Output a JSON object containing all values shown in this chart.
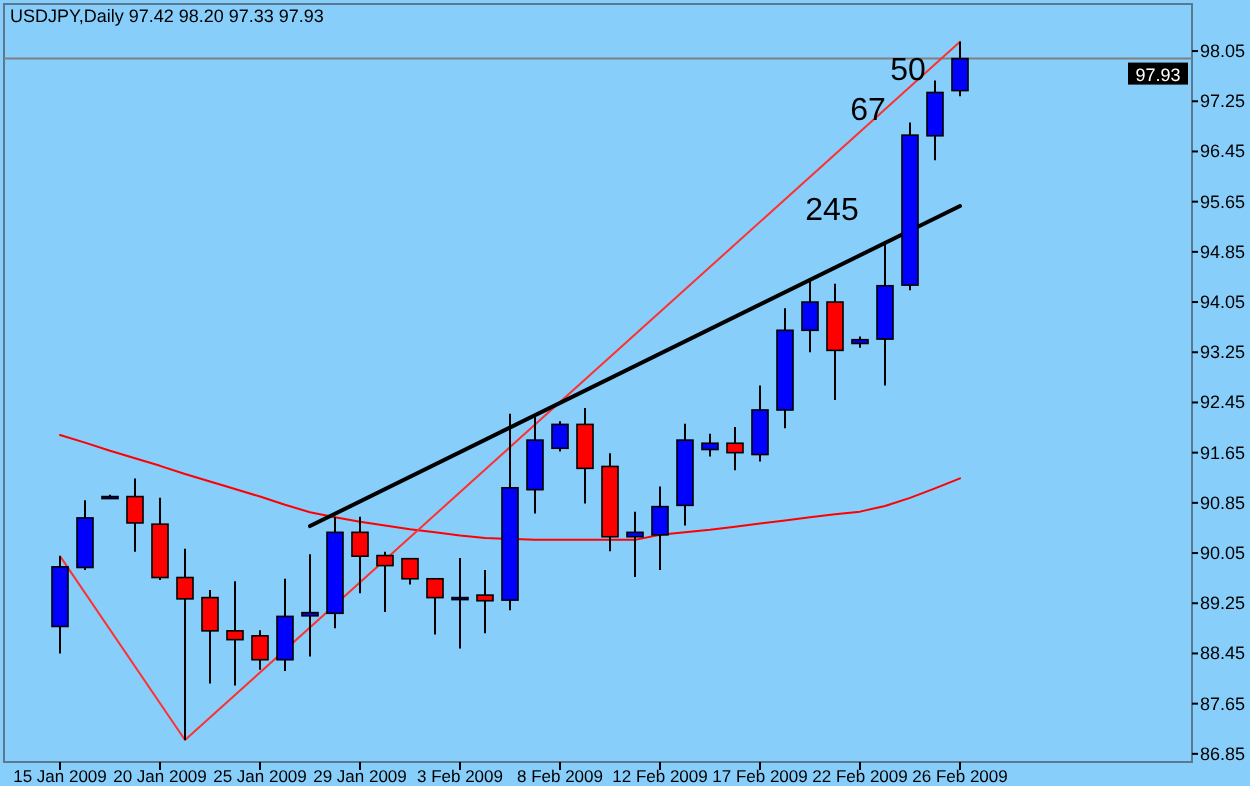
{
  "chart_data": {
    "type": "candlestick",
    "title": "USDJPY,Daily  97.42 98.20 97.33 97.93",
    "categories": [
      "15 Jan 2009",
      null,
      null,
      null,
      "20 Jan 2009",
      null,
      null,
      null,
      "25 Jan 2009",
      null,
      null,
      null,
      "29 Jan 2009",
      null,
      null,
      null,
      "3 Feb 2009",
      null,
      null,
      null,
      "8 Feb 2009",
      null,
      null,
      null,
      "12 Feb 2009",
      null,
      null,
      null,
      "17 Feb 2009",
      null,
      null,
      null,
      "22 Feb 2009",
      null,
      null,
      null,
      "26 Feb 2009"
    ],
    "ohlc": [
      [
        88.88,
        90.0,
        88.45,
        89.83
      ],
      [
        89.82,
        90.89,
        89.78,
        90.61
      ],
      [
        90.95,
        90.98,
        90.93,
        90.95
      ],
      [
        90.95,
        91.24,
        90.07,
        90.53
      ],
      [
        90.51,
        90.93,
        89.62,
        89.66
      ],
      [
        89.66,
        90.12,
        87.07,
        89.32
      ],
      [
        89.34,
        89.46,
        87.97,
        88.81
      ],
      [
        88.81,
        89.6,
        87.94,
        88.67
      ],
      [
        88.73,
        88.82,
        88.19,
        88.35
      ],
      [
        88.35,
        89.64,
        88.17,
        89.04
      ],
      [
        89.05,
        90.03,
        88.4,
        89.1
      ],
      [
        89.09,
        90.63,
        88.85,
        90.38
      ],
      [
        90.38,
        90.63,
        89.41,
        90.0
      ],
      [
        90.01,
        90.07,
        89.11,
        89.85
      ],
      [
        89.96,
        89.96,
        89.55,
        89.64
      ],
      [
        89.64,
        89.64,
        88.75,
        89.34
      ],
      [
        89.34,
        89.97,
        88.53,
        89.34
      ],
      [
        89.38,
        89.78,
        88.77,
        89.29
      ],
      [
        89.3,
        92.27,
        89.14,
        91.09
      ],
      [
        91.06,
        92.22,
        90.68,
        91.85
      ],
      [
        91.72,
        92.15,
        91.67,
        92.1
      ],
      [
        92.1,
        92.36,
        90.84,
        91.4
      ],
      [
        91.43,
        91.64,
        90.08,
        90.31
      ],
      [
        90.31,
        90.71,
        89.67,
        90.38
      ],
      [
        90.34,
        91.11,
        89.78,
        90.79
      ],
      [
        90.81,
        92.11,
        90.49,
        91.85
      ],
      [
        91.7,
        91.95,
        91.59,
        91.8
      ],
      [
        91.8,
        92.06,
        91.37,
        91.65
      ],
      [
        91.62,
        92.72,
        91.51,
        92.33
      ],
      [
        92.33,
        93.95,
        92.04,
        93.6
      ],
      [
        93.6,
        94.42,
        93.25,
        94.05
      ],
      [
        94.05,
        94.34,
        92.49,
        93.28
      ],
      [
        93.39,
        93.5,
        93.32,
        93.45
      ],
      [
        93.46,
        94.98,
        92.72,
        94.31
      ],
      [
        94.32,
        96.91,
        94.24,
        96.71
      ],
      [
        96.7,
        97.58,
        96.31,
        97.39
      ],
      [
        97.42,
        98.2,
        97.33,
        97.93
      ]
    ],
    "colors": [
      "#0000ff",
      "#0000ff",
      "#0000ff",
      "#ff0000",
      "#ff0000",
      "#ff0000",
      "#ff0000",
      "#ff0000",
      "#ff0000",
      "#0000ff",
      "#0000ff",
      "#0000ff",
      "#ff0000",
      "#ff0000",
      "#ff0000",
      "#ff0000",
      "#0000ff",
      "#ff0000",
      "#0000ff",
      "#0000ff",
      "#0000ff",
      "#ff0000",
      "#ff0000",
      "#0000ff",
      "#0000ff",
      "#0000ff",
      "#0000ff",
      "#ff0000",
      "#0000ff",
      "#0000ff",
      "#0000ff",
      "#ff0000",
      "#0000ff",
      "#0000ff",
      "#0000ff",
      "#0000ff",
      "#0000ff"
    ],
    "series": [
      {
        "type": "line",
        "color": "#ff0000",
        "values": [
          91.93,
          91.81,
          91.68,
          91.56,
          91.44,
          91.31,
          91.19,
          91.07,
          90.95,
          90.82,
          90.7,
          90.62,
          90.55,
          90.49,
          90.43,
          90.38,
          90.33,
          90.29,
          null,
          90.26,
          90.26,
          90.26,
          90.26,
          90.26,
          90.34,
          90.38,
          90.42,
          90.47,
          90.52,
          90.57,
          90.62,
          90.67,
          90.71,
          90.8,
          90.93,
          91.08,
          91.24
        ]
      },
      {
        "type": "line",
        "color": "#ff3030",
        "values": [
          90.0,
          null,
          null,
          null,
          null,
          87.07,
          null,
          null,
          null,
          null,
          null,
          null,
          null,
          null,
          null,
          null,
          null,
          null,
          null,
          null,
          null,
          null,
          null,
          null,
          null,
          null,
          null,
          null,
          null,
          null,
          null,
          null,
          null,
          null,
          null,
          null,
          98.2
        ]
      },
      {
        "type": "line",
        "color": "#000000",
        "values": [
          null,
          null,
          null,
          null,
          null,
          null,
          null,
          null,
          null,
          null,
          90.48,
          null,
          null,
          null,
          null,
          null,
          null,
          null,
          null,
          null,
          null,
          null,
          null,
          null,
          null,
          null,
          null,
          null,
          null,
          null,
          null,
          null,
          null,
          null,
          null,
          null,
          95.58
        ]
      }
    ],
    "ylim": [
      86.72,
      98.8
    ],
    "yticks": [
      86.85,
      87.65,
      88.45,
      89.25,
      90.05,
      90.85,
      91.65,
      92.45,
      93.25,
      94.05,
      94.85,
      95.65,
      96.45,
      97.25,
      98.05
    ],
    "ref_lines": [
      {
        "axis": "y",
        "value": 97.93,
        "label": "97.93",
        "color": "#808080"
      }
    ],
    "annotations": [
      "50",
      "67",
      "245"
    ],
    "grid": false
  }
}
